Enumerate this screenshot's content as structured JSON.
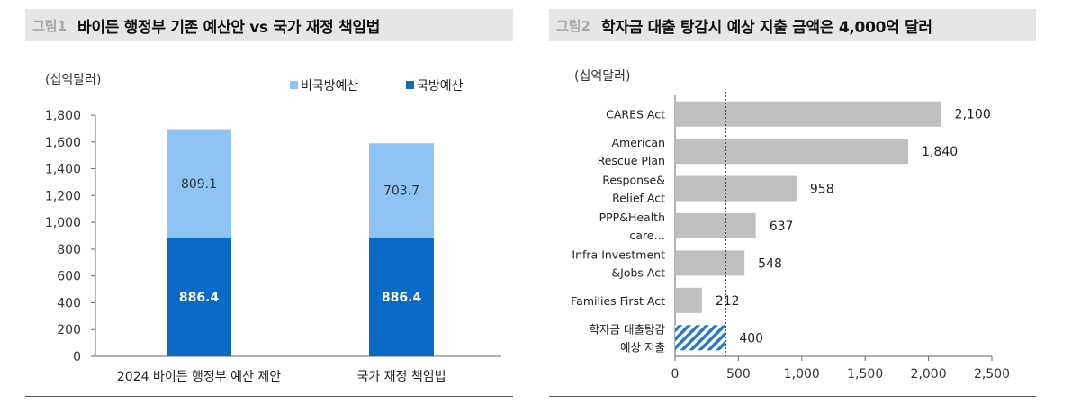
{
  "figure1": {
    "label": "그림1",
    "title": "바이든 행정부 기존 예산안 vs 국가 재정 책임법",
    "unit": "(십억달러)"
  },
  "figure2": {
    "label": "그림2",
    "title": "학자금 대출 탕감시 예상 지출 금액은 4,000억 달러",
    "unit": "(십억달러)"
  },
  "colors": {
    "non_defense": "#8fc3f3",
    "defense": "#0b6ac8",
    "hbar": "#bfbfbf",
    "highlight": "#2a78c8"
  },
  "chart_data": [
    {
      "type": "bar",
      "stacked": true,
      "categories": [
        "2024 바이든 행정부 예산 제안",
        "국가 재정 책임법"
      ],
      "series": [
        {
          "name": "국방예산",
          "values": [
            886.4,
            886.4
          ],
          "labels": [
            "886.4",
            "886.4"
          ]
        },
        {
          "name": "비국방예산",
          "values": [
            809.1,
            703.7
          ],
          "labels": [
            "809.1",
            "703.7"
          ]
        }
      ],
      "legend": [
        "비국방예산",
        "국방예산"
      ],
      "ylim": [
        0,
        1800
      ],
      "yticks": [
        0,
        200,
        400,
        600,
        800,
        1000,
        1200,
        1400,
        1600,
        1800
      ],
      "ytick_labels": [
        "0",
        "200",
        "400",
        "600",
        "800",
        "1,000",
        "1,200",
        "1,400",
        "1,600",
        "1,800"
      ],
      "ylabel": "(십억달러)"
    },
    {
      "type": "bar",
      "orientation": "horizontal",
      "categories": [
        [
          "CARES Act"
        ],
        [
          "American",
          "Rescue Plan"
        ],
        [
          "Response&",
          "Relief Act"
        ],
        [
          "PPP&Health",
          "care…"
        ],
        [
          "Infra Investment",
          "&Jobs Act"
        ],
        [
          "Families First Act"
        ],
        [
          "학자금 대출탕감",
          "예상 지출"
        ]
      ],
      "values": [
        2100,
        1840,
        958,
        637,
        548,
        212,
        400
      ],
      "value_labels": [
        "2,100",
        "1,840",
        "958",
        "637",
        "548",
        "212",
        "400"
      ],
      "highlight_index": 6,
      "reference_line": 400,
      "xlim": [
        0,
        2500
      ],
      "xticks": [
        0,
        500,
        1000,
        1500,
        2000,
        2500
      ],
      "xtick_labels": [
        "0",
        "500",
        "1,000",
        "1,500",
        "2,000",
        "2,500"
      ],
      "xlabel": "(십억달러)"
    }
  ]
}
